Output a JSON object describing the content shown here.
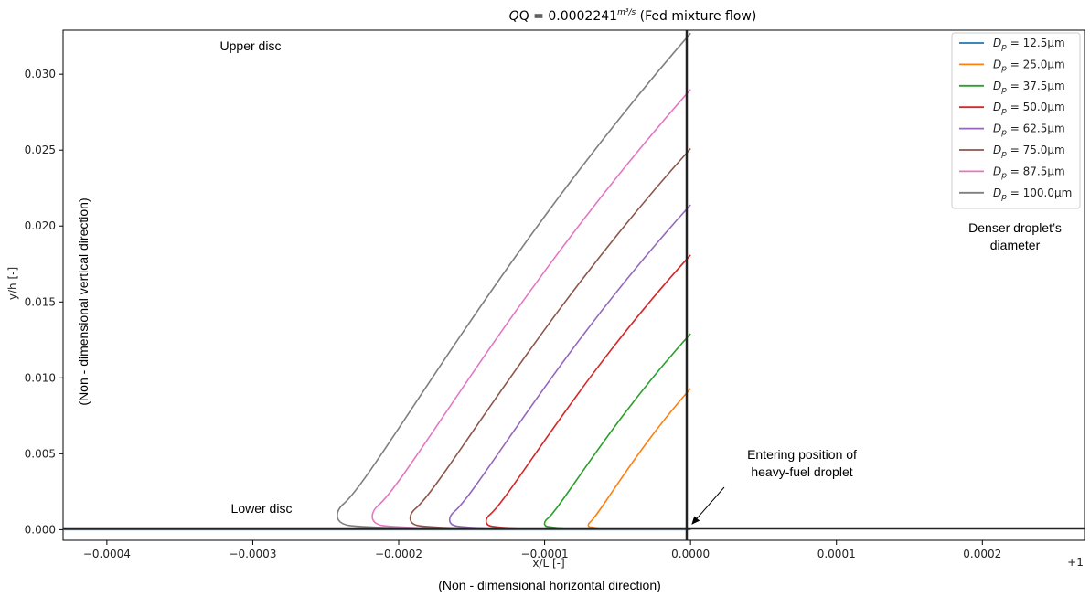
{
  "chart_data": {
    "type": "line",
    "title_formula": "Q = 0.0002241",
    "title_units": "m³/s",
    "title_suffix": "(Fed mixture flow)",
    "xlabel": "x/L [-]",
    "ylabel": "y/h [-]",
    "x_offset_label": "+1",
    "xlim": [
      -0.00043,
      0.00027
    ],
    "ylim": [
      -0.0007,
      0.0329
    ],
    "xticks": [
      -0.0004,
      -0.0003,
      -0.0002,
      -0.0001,
      0.0,
      0.0001,
      0.0002
    ],
    "xtick_labels": [
      "−0.0004",
      "−0.0003",
      "−0.0002",
      "−0.0001",
      "0.0000",
      "0.0001",
      "0.0002"
    ],
    "yticks": [
      0.0,
      0.005,
      0.01,
      0.015,
      0.02,
      0.025,
      0.03
    ],
    "ytick_labels": [
      "0.000",
      "0.005",
      "0.010",
      "0.015",
      "0.020",
      "0.025",
      "0.030"
    ],
    "legend_position": "top-right",
    "series": [
      {
        "name": "D_p = 12.5μm",
        "label_main": "D",
        "label_sub": "p",
        "label_value": " = 12.5μm",
        "color": "#1f77b4",
        "tip_x": 0.0,
        "top_y": 0.0
      },
      {
        "name": "D_p = 25.0μm",
        "label_main": "D",
        "label_sub": "p",
        "label_value": " = 25.0μm",
        "color": "#ff7f0e",
        "tip_x": -7e-05,
        "top_y": 0.0093
      },
      {
        "name": "D_p = 37.5μm",
        "label_main": "D",
        "label_sub": "p",
        "label_value": " = 37.5μm",
        "color": "#2ca02c",
        "tip_x": -0.0001,
        "top_y": 0.0129
      },
      {
        "name": "D_p = 50.0μm",
        "label_main": "D",
        "label_sub": "p",
        "label_value": " = 50.0μm",
        "color": "#d62728",
        "tip_x": -0.00014,
        "top_y": 0.0181
      },
      {
        "name": "D_p = 62.5μm",
        "label_main": "D",
        "label_sub": "p",
        "label_value": " = 62.5μm",
        "color": "#9467bd",
        "tip_x": -0.000165,
        "top_y": 0.0214
      },
      {
        "name": "D_p = 75.0μm",
        "label_main": "D",
        "label_sub": "p",
        "label_value": " = 75.0μm",
        "color": "#8c564b",
        "tip_x": -0.000192,
        "top_y": 0.0251
      },
      {
        "name": "D_p = 87.5μm",
        "label_main": "D",
        "label_sub": "p",
        "label_value": " = 87.5μm",
        "color": "#e377c2",
        "tip_x": -0.000218,
        "top_y": 0.029
      },
      {
        "name": "D_p = 100.0μm",
        "label_main": "D",
        "label_sub": "p",
        "label_value": " = 100.0μm",
        "color": "#7f7f7f",
        "tip_x": -0.000242,
        "top_y": 0.0327
      }
    ],
    "annotations": {
      "upper_disc": "Upper disc",
      "lower_disc": "Lower disc",
      "vertical_direction": "(Non - dimensional vertical direction)",
      "horizontal_direction": "(Non - dimensional horizontal direction)",
      "denser_line1": "Denser droplet’s",
      "denser_line2": "diameter",
      "entering_line1": "Entering position of",
      "entering_line2": "heavy-fuel droplet"
    }
  }
}
